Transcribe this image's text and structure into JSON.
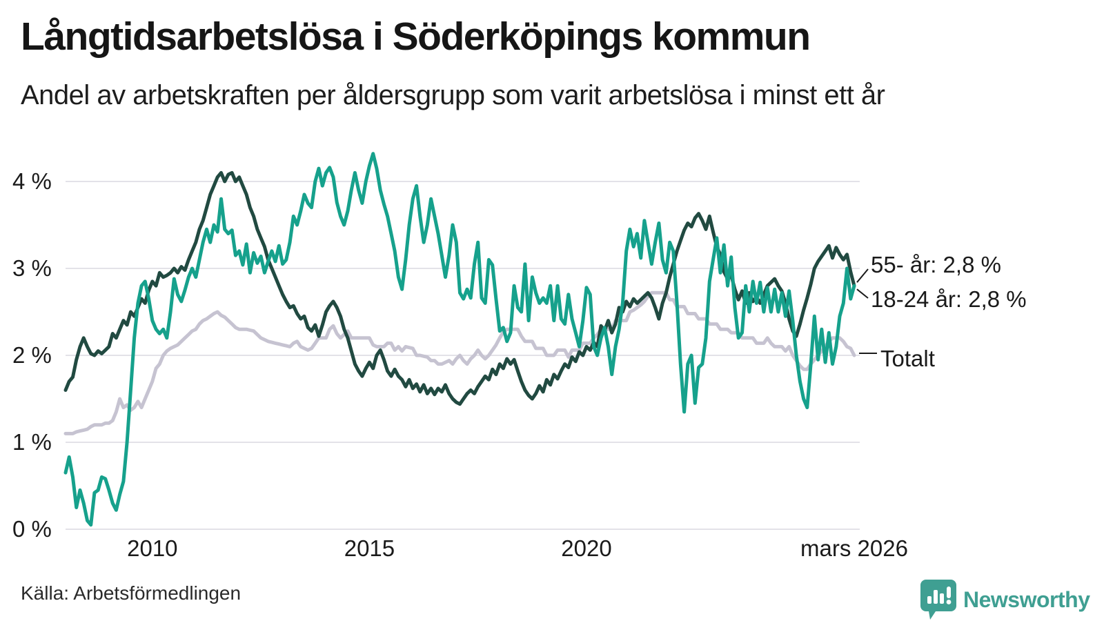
{
  "header": {
    "title": "Långtidsarbetslösa i Söderköpings kommun",
    "subtitle": "Andel av arbetskraften per åldersgrupp som varit arbetslösa i minst ett år"
  },
  "footer": {
    "source": "Källa: Arbetsförmedlingen",
    "brand": "Newsworthy"
  },
  "colors": {
    "series_55": "#214a41",
    "series_1824": "#16a18c",
    "series_total": "#c6c3d1",
    "gridline": "#e3e2e8",
    "text": "#1a1a1a",
    "brand_teal": "#3f9f92"
  },
  "chart_data": {
    "type": "line",
    "title": "Långtidsarbetslösa i Söderköpings kommun",
    "subtitle": "Andel av arbetskraften per åldersgrupp som varit arbetslösa i minst ett år",
    "unit": "%",
    "x_start": "2008-01",
    "x_end": "2026-03",
    "months_total": 219,
    "grid": true,
    "legend_position": "end-of-line-labels",
    "ylim": [
      0,
      4.4
    ],
    "y_ticks": [
      {
        "v": 4,
        "label": "4 %"
      },
      {
        "v": 3,
        "label": "3 %"
      },
      {
        "v": 2,
        "label": "2 %"
      },
      {
        "v": 1,
        "label": "1 %"
      },
      {
        "v": 0,
        "label": "0 %"
      }
    ],
    "x_ticks": [
      {
        "t": 24,
        "label": "2010"
      },
      {
        "t": 84,
        "label": "2015"
      },
      {
        "t": 144,
        "label": "2020"
      },
      {
        "t": 218,
        "label": "mars 2026"
      }
    ],
    "series": [
      {
        "key": "total",
        "name": "Totalt",
        "end_label": "Totalt",
        "end_value": 2.0,
        "color": "#c6c3d1",
        "values": [
          1.1,
          1.1,
          1.1,
          1.12,
          1.13,
          1.14,
          1.15,
          1.18,
          1.2,
          1.2,
          1.2,
          1.22,
          1.22,
          1.25,
          1.35,
          1.5,
          1.4,
          1.43,
          1.37,
          1.4,
          1.47,
          1.4,
          1.5,
          1.6,
          1.7,
          1.85,
          1.9,
          2.0,
          2.05,
          2.08,
          2.1,
          2.12,
          2.16,
          2.2,
          2.24,
          2.28,
          2.3,
          2.36,
          2.4,
          2.42,
          2.45,
          2.48,
          2.5,
          2.46,
          2.44,
          2.4,
          2.36,
          2.32,
          2.3,
          2.3,
          2.3,
          2.29,
          2.28,
          2.24,
          2.2,
          2.18,
          2.16,
          2.15,
          2.14,
          2.13,
          2.12,
          2.11,
          2.1,
          2.14,
          2.16,
          2.1,
          2.08,
          2.06,
          2.08,
          2.14,
          2.2,
          2.2,
          2.2,
          2.3,
          2.34,
          2.25,
          2.2,
          2.24,
          2.28,
          2.2,
          2.2,
          2.2,
          2.2,
          2.2,
          2.2,
          2.12,
          2.1,
          2.1,
          2.1,
          2.14,
          2.14,
          2.06,
          2.1,
          2.05,
          2.1,
          2.09,
          2.08,
          2.0,
          2.0,
          1.99,
          1.98,
          1.94,
          1.94,
          1.9,
          1.9,
          1.92,
          1.94,
          1.9,
          1.96,
          2.0,
          1.94,
          1.9,
          1.96,
          2.0,
          2.06,
          2.0,
          1.96,
          2.0,
          2.06,
          2.12,
          2.2,
          2.27,
          2.3,
          2.3,
          2.3,
          2.3,
          2.22,
          2.16,
          2.16,
          2.16,
          2.08,
          2.08,
          2.08,
          2.0,
          2.0,
          2.0,
          2.06,
          2.06,
          2.06,
          1.98,
          2.06,
          2.06,
          2.06,
          2.14,
          2.14,
          2.14,
          2.2,
          2.24,
          2.3,
          2.3,
          2.3,
          2.3,
          2.4,
          2.4,
          2.4,
          2.4,
          2.5,
          2.52,
          2.55,
          2.58,
          2.62,
          2.68,
          2.72,
          2.72,
          2.72,
          2.72,
          2.72,
          2.64,
          2.64,
          2.56,
          2.56,
          2.56,
          2.48,
          2.48,
          2.48,
          2.42,
          2.42,
          2.42,
          2.36,
          2.36,
          2.36,
          2.3,
          2.3,
          2.3,
          2.26,
          2.26,
          2.26,
          2.2,
          2.2,
          2.2,
          2.2,
          2.14,
          2.14,
          2.14,
          2.2,
          2.14,
          2.1,
          2.1,
          2.1,
          2.05,
          2.1,
          2.0,
          1.94,
          1.88,
          1.84,
          1.84,
          1.9,
          1.95,
          2.0,
          2.05,
          2.1,
          2.16,
          2.2,
          2.2,
          2.2,
          2.16,
          2.1,
          2.08,
          2.0
        ]
      },
      {
        "key": "u55",
        "name": "55- år",
        "end_label": "55- år: 2,8 %",
        "end_value": 2.8,
        "color": "#214a41",
        "values": [
          1.6,
          1.7,
          1.75,
          1.95,
          2.1,
          2.2,
          2.1,
          2.02,
          2.0,
          2.05,
          2.02,
          2.06,
          2.1,
          2.25,
          2.2,
          2.3,
          2.4,
          2.35,
          2.5,
          2.45,
          2.55,
          2.65,
          2.6,
          2.75,
          2.85,
          2.8,
          2.95,
          2.9,
          2.92,
          2.95,
          3.0,
          2.95,
          3.02,
          2.98,
          3.1,
          3.2,
          3.3,
          3.45,
          3.55,
          3.7,
          3.85,
          3.95,
          4.05,
          4.1,
          4.0,
          4.08,
          4.1,
          4.0,
          4.05,
          3.95,
          3.85,
          3.7,
          3.6,
          3.45,
          3.35,
          3.25,
          3.1,
          3.0,
          2.9,
          2.8,
          2.7,
          2.62,
          2.55,
          2.57,
          2.48,
          2.42,
          2.45,
          2.32,
          2.28,
          2.35,
          2.22,
          2.35,
          2.5,
          2.57,
          2.62,
          2.55,
          2.45,
          2.3,
          2.2,
          2.05,
          1.9,
          1.82,
          1.76,
          1.85,
          1.92,
          1.85,
          2.0,
          2.06,
          1.95,
          1.82,
          1.76,
          1.84,
          1.76,
          1.72,
          1.64,
          1.72,
          1.62,
          1.67,
          1.58,
          1.66,
          1.56,
          1.62,
          1.55,
          1.62,
          1.58,
          1.66,
          1.56,
          1.5,
          1.46,
          1.44,
          1.5,
          1.56,
          1.6,
          1.56,
          1.64,
          1.7,
          1.76,
          1.72,
          1.84,
          1.78,
          1.9,
          1.85,
          1.96,
          1.9,
          1.95,
          1.82,
          1.7,
          1.6,
          1.54,
          1.5,
          1.56,
          1.65,
          1.58,
          1.72,
          1.66,
          1.78,
          1.73,
          1.82,
          1.9,
          1.86,
          1.98,
          1.93,
          2.04,
          2.0,
          2.1,
          2.06,
          2.15,
          2.1,
          2.34,
          2.28,
          2.4,
          2.26,
          2.36,
          2.55,
          2.5,
          2.62,
          2.56,
          2.65,
          2.6,
          2.64,
          2.68,
          2.72,
          2.66,
          2.55,
          2.42,
          2.6,
          2.72,
          2.9,
          3.05,
          3.2,
          3.32,
          3.44,
          3.52,
          3.48,
          3.58,
          3.63,
          3.55,
          3.45,
          3.6,
          3.42,
          3.25,
          3.16,
          2.96,
          2.88,
          2.92,
          2.76,
          2.64,
          2.74,
          2.6,
          2.72,
          2.62,
          2.67,
          2.6,
          2.7,
          2.8,
          2.84,
          2.88,
          2.8,
          2.74,
          2.6,
          2.42,
          2.28,
          2.22,
          2.36,
          2.52,
          2.66,
          2.82,
          3.0,
          3.08,
          3.14,
          3.2,
          3.26,
          3.12,
          3.24,
          3.16,
          3.1,
          3.16,
          2.96,
          2.8
        ]
      },
      {
        "key": "u1824",
        "name": "18-24 år",
        "end_label": "18-24 år: 2,8 %",
        "end_value": 2.8,
        "color": "#16a18c",
        "values": [
          0.65,
          0.83,
          0.6,
          0.25,
          0.45,
          0.3,
          0.1,
          0.05,
          0.42,
          0.45,
          0.6,
          0.58,
          0.45,
          0.3,
          0.22,
          0.4,
          0.55,
          1.0,
          1.6,
          2.2,
          2.6,
          2.8,
          2.85,
          2.65,
          2.4,
          2.3,
          2.25,
          2.3,
          2.2,
          2.5,
          2.88,
          2.7,
          2.62,
          2.75,
          2.9,
          3.0,
          2.9,
          3.1,
          3.3,
          3.45,
          3.3,
          3.5,
          3.42,
          3.8,
          3.45,
          3.4,
          3.44,
          3.15,
          3.2,
          3.04,
          3.28,
          2.95,
          3.18,
          3.06,
          3.14,
          2.95,
          3.08,
          3.2,
          3.08,
          3.26,
          3.05,
          3.1,
          3.3,
          3.6,
          3.5,
          3.66,
          3.85,
          3.75,
          3.7,
          4.0,
          4.15,
          3.95,
          4.1,
          4.16,
          4.05,
          3.76,
          3.6,
          3.5,
          3.66,
          3.9,
          4.1,
          3.9,
          3.75,
          4.0,
          4.18,
          4.32,
          4.15,
          3.9,
          3.74,
          3.6,
          3.4,
          3.2,
          2.9,
          2.76,
          3.1,
          3.5,
          3.8,
          3.95,
          3.6,
          3.3,
          3.5,
          3.8,
          3.6,
          3.4,
          3.15,
          2.9,
          3.15,
          3.5,
          3.3,
          2.72,
          2.65,
          2.76,
          2.66,
          3.05,
          3.3,
          2.66,
          2.6,
          3.1,
          3.04,
          2.65,
          2.28,
          2.32,
          2.16,
          2.26,
          2.8,
          2.55,
          2.5,
          3.05,
          2.4,
          2.9,
          2.72,
          2.6,
          2.66,
          2.6,
          2.8,
          2.4,
          2.8,
          2.42,
          2.36,
          2.7,
          2.42,
          2.26,
          2.1,
          2.4,
          2.78,
          2.7,
          2.1,
          2.0,
          2.2,
          2.32,
          2.1,
          1.78,
          2.1,
          2.3,
          2.6,
          3.2,
          3.45,
          3.25,
          3.4,
          3.12,
          3.55,
          3.3,
          3.05,
          3.3,
          3.52,
          3.1,
          2.95,
          3.3,
          3.2,
          2.6,
          1.9,
          1.35,
          1.9,
          2.0,
          1.45,
          1.86,
          1.9,
          2.2,
          2.85,
          3.1,
          3.35,
          2.95,
          3.27,
          2.8,
          3.13,
          2.55,
          2.2,
          2.26,
          2.8,
          2.5,
          2.85,
          2.6,
          2.84,
          2.5,
          2.78,
          2.5,
          2.76,
          2.5,
          2.72,
          2.45,
          2.74,
          2.4,
          2.0,
          1.7,
          1.5,
          1.4,
          1.9,
          2.45,
          1.95,
          2.3,
          1.92,
          2.26,
          1.9,
          2.1,
          2.45,
          2.6,
          3.0,
          2.65,
          2.8
        ]
      }
    ]
  }
}
